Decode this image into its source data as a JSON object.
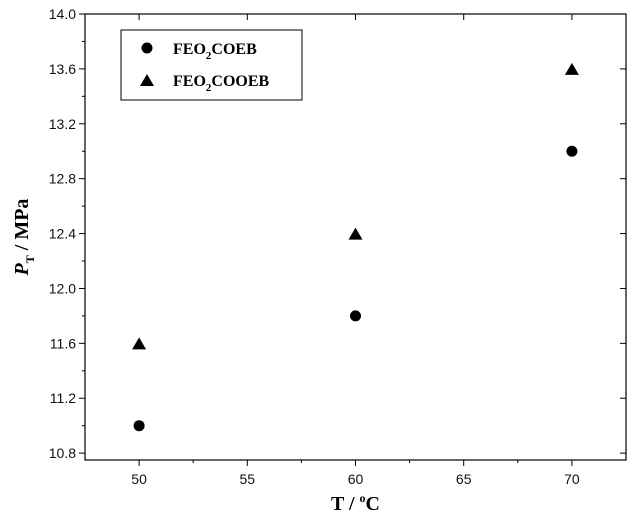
{
  "chart_data": {
    "type": "scatter",
    "title": "",
    "xlabel": {
      "main": "T / ",
      "sup": "o",
      "unit": "C"
    },
    "ylabel": {
      "main": "P",
      "sub": "T",
      "unit": " / MPa"
    },
    "xlim": [
      47.5,
      72.5
    ],
    "ylim": [
      10.75,
      14.0
    ],
    "xticks": [
      50,
      55,
      60,
      65,
      70
    ],
    "yticks": [
      10.8,
      11.2,
      11.6,
      12.0,
      12.4,
      12.8,
      13.2,
      13.6,
      14.0
    ],
    "ytick_labels": [
      "10.8",
      "11.2",
      "11.6",
      "12.0",
      "12.4",
      "12.8",
      "13.2",
      "13.6",
      "14.0"
    ],
    "xtick_labels": [
      "50",
      "55",
      "60",
      "65",
      "70"
    ],
    "grid": false,
    "legend_position": "top-left",
    "series": [
      {
        "name": {
          "pre": "FEO",
          "sub": "2",
          "post": "COEB"
        },
        "marker": "circle",
        "color": "#000000",
        "x": [
          50,
          60,
          70
        ],
        "y": [
          11.0,
          11.8,
          13.0
        ]
      },
      {
        "name": {
          "pre": "FEO",
          "sub": "2",
          "post": "COOEB"
        },
        "marker": "triangle",
        "color": "#000000",
        "x": [
          50,
          60,
          70
        ],
        "y": [
          11.6,
          12.4,
          13.6
        ]
      }
    ]
  }
}
